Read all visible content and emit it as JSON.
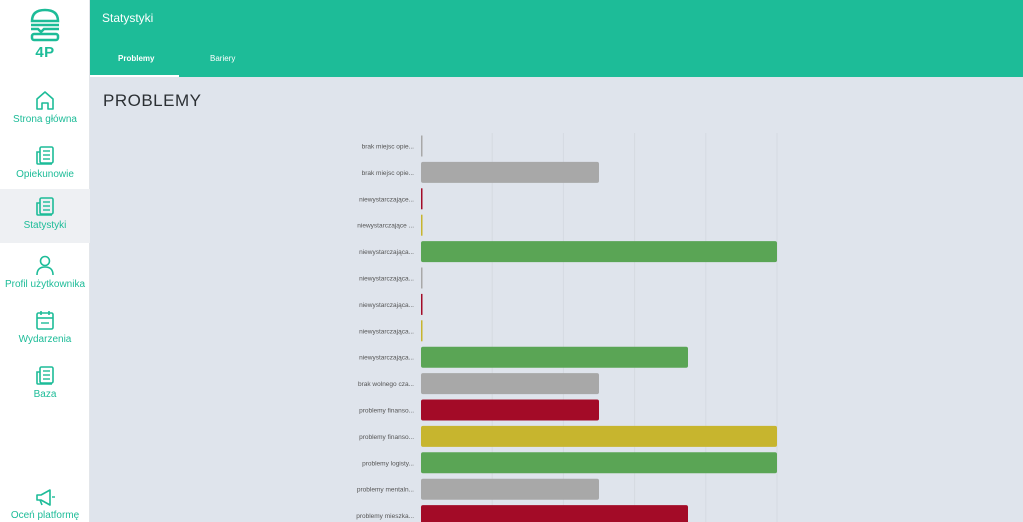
{
  "brand": {
    "name": "4P",
    "icon": "burger-logo-icon"
  },
  "sidebar": {
    "items": [
      {
        "label": "Strona główna",
        "icon": "home-icon"
      },
      {
        "label": "Opiekunowie",
        "icon": "document-icon"
      },
      {
        "label": "Statystyki",
        "icon": "document-icon",
        "active": true
      },
      {
        "label": "Profil użytkownika",
        "icon": "user-icon"
      },
      {
        "label": "Wydarzenia",
        "icon": "calendar-icon"
      },
      {
        "label": "Baza",
        "icon": "document-icon"
      }
    ],
    "footer": {
      "label": "Oceń platformę",
      "icon": "megaphone-icon"
    }
  },
  "header": {
    "title": "Statystyki",
    "tabs": [
      {
        "label": "Problemy",
        "active": true
      },
      {
        "label": "Bariery",
        "active": false
      }
    ]
  },
  "main": {
    "heading": "PROBLEMY"
  },
  "colors": {
    "accent": "#1dbc98",
    "grey": "#a8a8a8",
    "green": "#5aa555",
    "red": "#a30b27",
    "yellow": "#c7b52e"
  },
  "chart_data": {
    "type": "bar",
    "orientation": "horizontal",
    "categories": [
      "brak miejsc opie...",
      "brak miejsc opie...",
      "niewystarczające...",
      "niewystarczające ...",
      "niewystarczająca...",
      "niewystarczająca...",
      "niewystarczająca...",
      "niewystarczająca...",
      "niewystarczająca...",
      "brak wolnego cza...",
      "problemy finanso...",
      "problemy finanso...",
      "problemy logisty...",
      "problemy mentaln...",
      "problemy mieszka..."
    ],
    "values": [
      0,
      2,
      0,
      0,
      4,
      0,
      0,
      0,
      3,
      2,
      2,
      4,
      4,
      2,
      3
    ],
    "bar_colors": [
      "#a8a8a8",
      "#a8a8a8",
      "#a30b27",
      "#c7b52e",
      "#5aa555",
      "#a8a8a8",
      "#a30b27",
      "#c7b52e",
      "#5aa555",
      "#a8a8a8",
      "#a30b27",
      "#c7b52e",
      "#5aa555",
      "#a8a8a8",
      "#a30b27"
    ],
    "xlim": [
      0,
      4
    ],
    "grid": true
  }
}
